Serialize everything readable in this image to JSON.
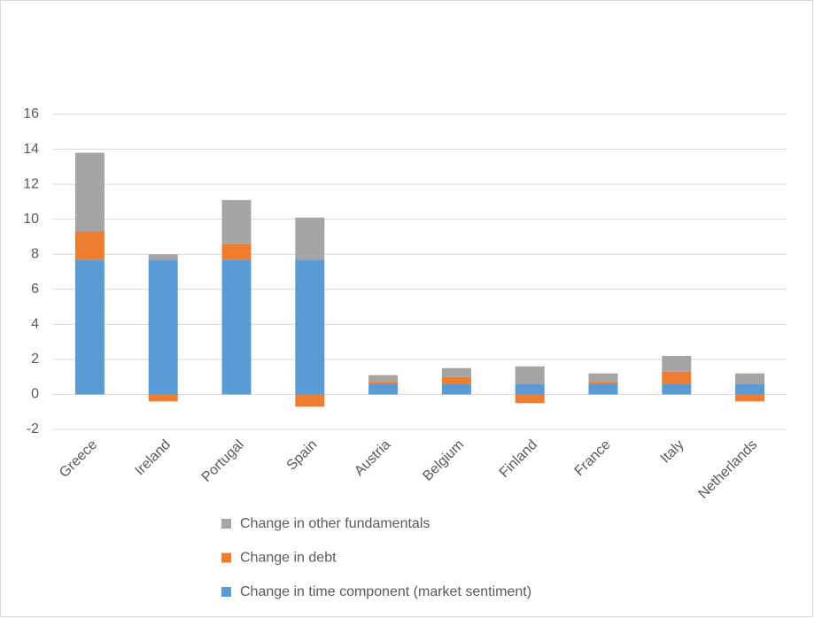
{
  "chart_data": {
    "type": "stacked-bar",
    "categories": [
      "Greece",
      "Ireland",
      "Portugal",
      "Spain",
      "Austria",
      "Belgium",
      "Finland",
      "France",
      "Italy",
      "Netherlands"
    ],
    "series": [
      {
        "name": "Change in time component (market sentiment)",
        "color": "#5b9bd5",
        "values": [
          7.7,
          7.7,
          7.7,
          7.7,
          0.6,
          0.6,
          0.6,
          0.6,
          0.6,
          0.6
        ]
      },
      {
        "name": "Change in debt",
        "color": "#ed7d31",
        "values": [
          1.6,
          -0.4,
          0.9,
          -0.7,
          0.1,
          0.4,
          -0.5,
          0.1,
          0.7,
          -0.4
        ]
      },
      {
        "name": "Change in other fundamentals",
        "color": "#a5a5a5",
        "values": [
          4.5,
          0.3,
          2.5,
          2.4,
          0.4,
          0.5,
          1.0,
          0.5,
          0.9,
          0.6
        ]
      }
    ],
    "ylim": [
      -2,
      16
    ],
    "yticks": [
      -2,
      0,
      2,
      4,
      6,
      8,
      10,
      12,
      14,
      16
    ],
    "grid": true,
    "legend": "bottom"
  }
}
